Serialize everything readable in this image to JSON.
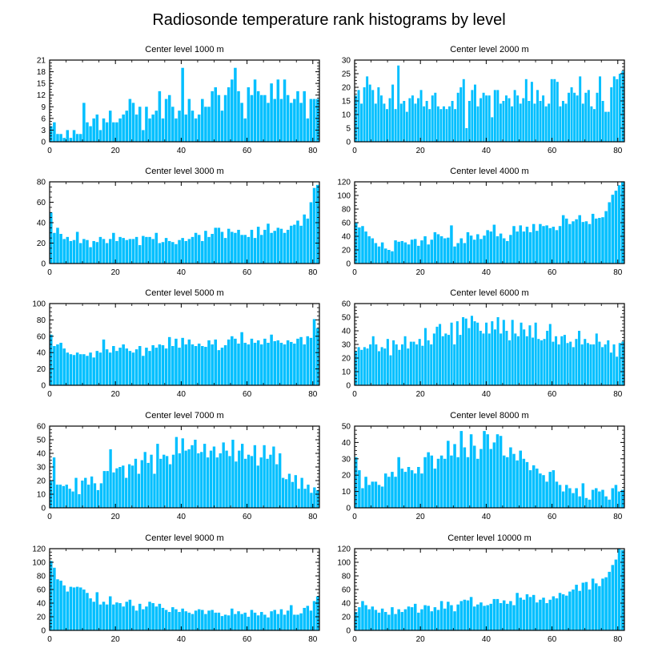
{
  "figure_title": "Radiosonde temperature rank histograms by level",
  "colors": {
    "bar": "#00bfff",
    "bar_edge": "#ffffff",
    "axis": "#000000"
  },
  "chart_data": [
    {
      "type": "bar",
      "title": "Center level 1000 m",
      "xlim": [
        0,
        82
      ],
      "ylim": [
        0,
        21
      ],
      "xticks": [
        "0",
        "20",
        "40",
        "60",
        "80"
      ],
      "yticks": [
        "0",
        "3",
        "6",
        "9",
        "12",
        "15",
        "18",
        "21"
      ],
      "values": [
        4,
        5,
        2,
        2,
        1,
        3,
        1,
        3,
        2,
        2,
        10,
        5,
        4,
        6,
        7,
        3,
        6,
        5,
        8,
        5,
        5,
        6,
        7,
        8,
        11,
        10,
        7,
        9,
        3,
        9,
        6,
        7,
        8,
        13,
        6,
        11,
        12,
        9,
        6,
        8,
        19,
        7,
        11,
        8,
        6,
        7,
        11,
        9,
        9,
        13,
        14,
        12,
        8,
        12,
        14,
        16,
        19,
        13,
        10,
        6,
        14,
        12,
        16,
        13,
        12,
        12,
        10,
        15,
        11,
        16,
        11,
        16,
        12,
        10,
        11,
        13,
        10,
        13,
        6,
        11,
        11,
        11
      ]
    },
    {
      "type": "bar",
      "title": "Center level 2000 m",
      "xlim": [
        0,
        82
      ],
      "ylim": [
        0,
        30
      ],
      "xticks": [
        "0",
        "20",
        "40",
        "60",
        "80"
      ],
      "yticks": [
        "0",
        "5",
        "10",
        "15",
        "20",
        "25",
        "30"
      ],
      "values": [
        17,
        19,
        14,
        20,
        24,
        21,
        19,
        14,
        20,
        17,
        14,
        12,
        16,
        21,
        12,
        28,
        14,
        15,
        11,
        16,
        17,
        14,
        16,
        19,
        13,
        15,
        12,
        17,
        18,
        13,
        12,
        13,
        12,
        13,
        15,
        12,
        18,
        20,
        23,
        5,
        15,
        19,
        21,
        13,
        16,
        18,
        17,
        17,
        9,
        19,
        19,
        14,
        15,
        17,
        16,
        13,
        19,
        17,
        14,
        16,
        23,
        15,
        22,
        14,
        19,
        15,
        17,
        13,
        14,
        23,
        23,
        22,
        13,
        15,
        14,
        18,
        20,
        18,
        17,
        24,
        14,
        18,
        19,
        13,
        12,
        18,
        24,
        15,
        11,
        11,
        20,
        24,
        23,
        25,
        26
      ]
    },
    {
      "type": "bar",
      "title": "Center level 3000 m",
      "xlim": [
        0,
        82
      ],
      "ylim": [
        0,
        80
      ],
      "xticks": [
        "0",
        "20",
        "40",
        "60",
        "80"
      ],
      "yticks": [
        "0",
        "20",
        "40",
        "60",
        "80"
      ],
      "values": [
        50,
        30,
        35,
        29,
        24,
        26,
        22,
        23,
        31,
        20,
        24,
        23,
        16,
        22,
        21,
        26,
        24,
        20,
        24,
        30,
        22,
        26,
        25,
        23,
        24,
        24,
        26,
        18,
        27,
        26,
        26,
        24,
        30,
        20,
        21,
        25,
        22,
        21,
        19,
        23,
        25,
        22,
        24,
        26,
        30,
        28,
        22,
        32,
        26,
        29,
        35,
        35,
        31,
        25,
        34,
        31,
        30,
        33,
        28,
        28,
        26,
        33,
        25,
        36,
        28,
        33,
        39,
        30,
        32,
        35,
        34,
        30,
        33,
        37,
        38,
        42,
        37,
        48,
        44,
        60,
        74,
        77
      ]
    },
    {
      "type": "bar",
      "title": "Center level 4000 m",
      "xlim": [
        0,
        82
      ],
      "ylim": [
        0,
        120
      ],
      "xticks": [
        "0",
        "20",
        "40",
        "60",
        "80"
      ],
      "yticks": [
        "0",
        "20",
        "40",
        "60",
        "80",
        "100",
        "120"
      ],
      "values": [
        60,
        53,
        55,
        47,
        40,
        37,
        30,
        25,
        31,
        22,
        20,
        18,
        34,
        32,
        33,
        31,
        28,
        35,
        36,
        26,
        34,
        40,
        28,
        35,
        46,
        43,
        40,
        37,
        38,
        56,
        25,
        30,
        37,
        30,
        46,
        41,
        35,
        43,
        36,
        41,
        49,
        47,
        57,
        40,
        44,
        37,
        33,
        42,
        55,
        47,
        56,
        47,
        54,
        46,
        58,
        48,
        58,
        55,
        56,
        52,
        54,
        49,
        55,
        71,
        66,
        58,
        62,
        65,
        71,
        61,
        62,
        58,
        73,
        66,
        67,
        68,
        77,
        90,
        101,
        107,
        115,
        120
      ]
    },
    {
      "type": "bar",
      "title": "Center level 5000 m",
      "xlim": [
        0,
        82
      ],
      "ylim": [
        0,
        100
      ],
      "xticks": [
        "0",
        "20",
        "40",
        "60",
        "80"
      ],
      "yticks": [
        "0",
        "20",
        "40",
        "60",
        "80",
        "100"
      ],
      "values": [
        62,
        48,
        50,
        52,
        45,
        40,
        38,
        37,
        40,
        38,
        38,
        36,
        40,
        34,
        42,
        40,
        56,
        44,
        40,
        48,
        42,
        46,
        50,
        45,
        42,
        40,
        44,
        48,
        36,
        46,
        42,
        49,
        46,
        50,
        49,
        45,
        59,
        48,
        57,
        46,
        58,
        50,
        56,
        50,
        48,
        51,
        48,
        47,
        55,
        50,
        56,
        43,
        46,
        49,
        56,
        60,
        57,
        51,
        65,
        52,
        50,
        57,
        52,
        55,
        50,
        57,
        52,
        62,
        54,
        55,
        52,
        50,
        55,
        53,
        51,
        57,
        59,
        50,
        60,
        58,
        81,
        70
      ]
    },
    {
      "type": "bar",
      "title": "Center level 6000 m",
      "xlim": [
        0,
        82
      ],
      "ylim": [
        0,
        60
      ],
      "xticks": [
        "0",
        "20",
        "40",
        "60",
        "80"
      ],
      "yticks": [
        "0",
        "10",
        "20",
        "30",
        "40",
        "50",
        "60"
      ],
      "values": [
        25,
        28,
        26,
        28,
        27,
        30,
        36,
        30,
        25,
        28,
        27,
        34,
        22,
        33,
        30,
        26,
        30,
        36,
        27,
        32,
        32,
        30,
        34,
        29,
        42,
        33,
        30,
        38,
        43,
        45,
        36,
        38,
        37,
        46,
        30,
        47,
        37,
        50,
        49,
        42,
        51,
        47,
        46,
        40,
        38,
        46,
        38,
        47,
        41,
        50,
        38,
        48,
        40,
        33,
        48,
        38,
        36,
        46,
        41,
        36,
        44,
        35,
        46,
        34,
        33,
        34,
        40,
        45,
        32,
        36,
        30,
        36,
        37,
        31,
        32,
        28,
        34,
        40,
        30,
        34,
        31,
        30,
        30,
        38,
        32,
        28,
        30,
        33,
        24,
        30,
        21,
        31,
        32
      ]
    },
    {
      "type": "bar",
      "title": "Center level 7000 m",
      "xlim": [
        0,
        82
      ],
      "ylim": [
        0,
        60
      ],
      "xticks": [
        "0",
        "20",
        "40",
        "60",
        "80"
      ],
      "yticks": [
        "0",
        "10",
        "20",
        "30",
        "40",
        "50",
        "60"
      ],
      "values": [
        20,
        37,
        17,
        17,
        16,
        17,
        14,
        12,
        22,
        10,
        20,
        22,
        17,
        23,
        18,
        13,
        18,
        27,
        27,
        43,
        26,
        29,
        30,
        31,
        22,
        32,
        31,
        36,
        25,
        35,
        41,
        33,
        39,
        25,
        47,
        36,
        39,
        38,
        32,
        39,
        52,
        40,
        51,
        42,
        43,
        46,
        50,
        40,
        41,
        47,
        37,
        42,
        45,
        37,
        40,
        48,
        42,
        38,
        50,
        34,
        42,
        47,
        36,
        39,
        38,
        46,
        31,
        37,
        46,
        36,
        39,
        45,
        32,
        40,
        22,
        21,
        25,
        19,
        24,
        14,
        22,
        14,
        17,
        11,
        15,
        13
      ]
    },
    {
      "type": "bar",
      "title": "Center level 8000 m",
      "xlim": [
        0,
        82
      ],
      "ylim": [
        0,
        50
      ],
      "xticks": [
        "0",
        "20",
        "40",
        "60",
        "80"
      ],
      "yticks": [
        "0",
        "10",
        "20",
        "30",
        "40",
        "50"
      ],
      "values": [
        31,
        23,
        12,
        19,
        14,
        16,
        16,
        14,
        13,
        21,
        19,
        22,
        19,
        31,
        24,
        22,
        25,
        23,
        21,
        25,
        21,
        31,
        34,
        32,
        24,
        30,
        32,
        30,
        41,
        32,
        39,
        31,
        47,
        37,
        31,
        45,
        38,
        30,
        36,
        47,
        45,
        36,
        40,
        45,
        44,
        32,
        31,
        37,
        33,
        29,
        35,
        30,
        28,
        23,
        26,
        24,
        21,
        20,
        16,
        22,
        23,
        16,
        14,
        10,
        14,
        12,
        9,
        12,
        7,
        15,
        6,
        5,
        11,
        12,
        10,
        11,
        7,
        5,
        12,
        14,
        10,
        11
      ]
    },
    {
      "type": "bar",
      "title": "Center level 9000 m",
      "xlim": [
        0,
        82
      ],
      "ylim": [
        0,
        120
      ],
      "xticks": [
        "0",
        "20",
        "40",
        "60",
        "80"
      ],
      "yticks": [
        "0",
        "20",
        "40",
        "60",
        "80",
        "100",
        "120"
      ],
      "values": [
        102,
        92,
        75,
        73,
        66,
        57,
        64,
        63,
        64,
        63,
        60,
        55,
        47,
        42,
        56,
        38,
        42,
        38,
        50,
        38,
        41,
        40,
        35,
        42,
        45,
        36,
        29,
        39,
        31,
        35,
        42,
        40,
        35,
        39,
        33,
        30,
        27,
        34,
        31,
        27,
        32,
        28,
        26,
        24,
        29,
        31,
        30,
        24,
        29,
        30,
        26,
        26,
        21,
        23,
        22,
        32,
        24,
        28,
        24,
        26,
        20,
        30,
        26,
        22,
        27,
        23,
        19,
        28,
        30,
        24,
        31,
        23,
        29,
        37,
        23,
        23,
        25,
        33,
        36,
        29,
        43,
        50
      ]
    },
    {
      "type": "bar",
      "title": "Center level 10000 m",
      "xlim": [
        0,
        82
      ],
      "ylim": [
        0,
        120
      ],
      "xticks": [
        "0",
        "20",
        "40",
        "60",
        "80"
      ],
      "yticks": [
        "0",
        "20",
        "40",
        "60",
        "80",
        "100",
        "120"
      ],
      "values": [
        27,
        34,
        43,
        37,
        31,
        35,
        30,
        26,
        32,
        27,
        23,
        34,
        24,
        31,
        27,
        31,
        35,
        34,
        39,
        26,
        31,
        37,
        36,
        28,
        34,
        30,
        43,
        32,
        42,
        37,
        28,
        38,
        43,
        45,
        44,
        49,
        35,
        38,
        41,
        36,
        37,
        39,
        46,
        46,
        40,
        44,
        39,
        43,
        37,
        55,
        48,
        45,
        53,
        49,
        52,
        41,
        45,
        48,
        40,
        45,
        50,
        47,
        55,
        53,
        51,
        57,
        60,
        67,
        58,
        70,
        71,
        60,
        76,
        69,
        65,
        76,
        78,
        86,
        96,
        104,
        120,
        118
      ]
    }
  ]
}
